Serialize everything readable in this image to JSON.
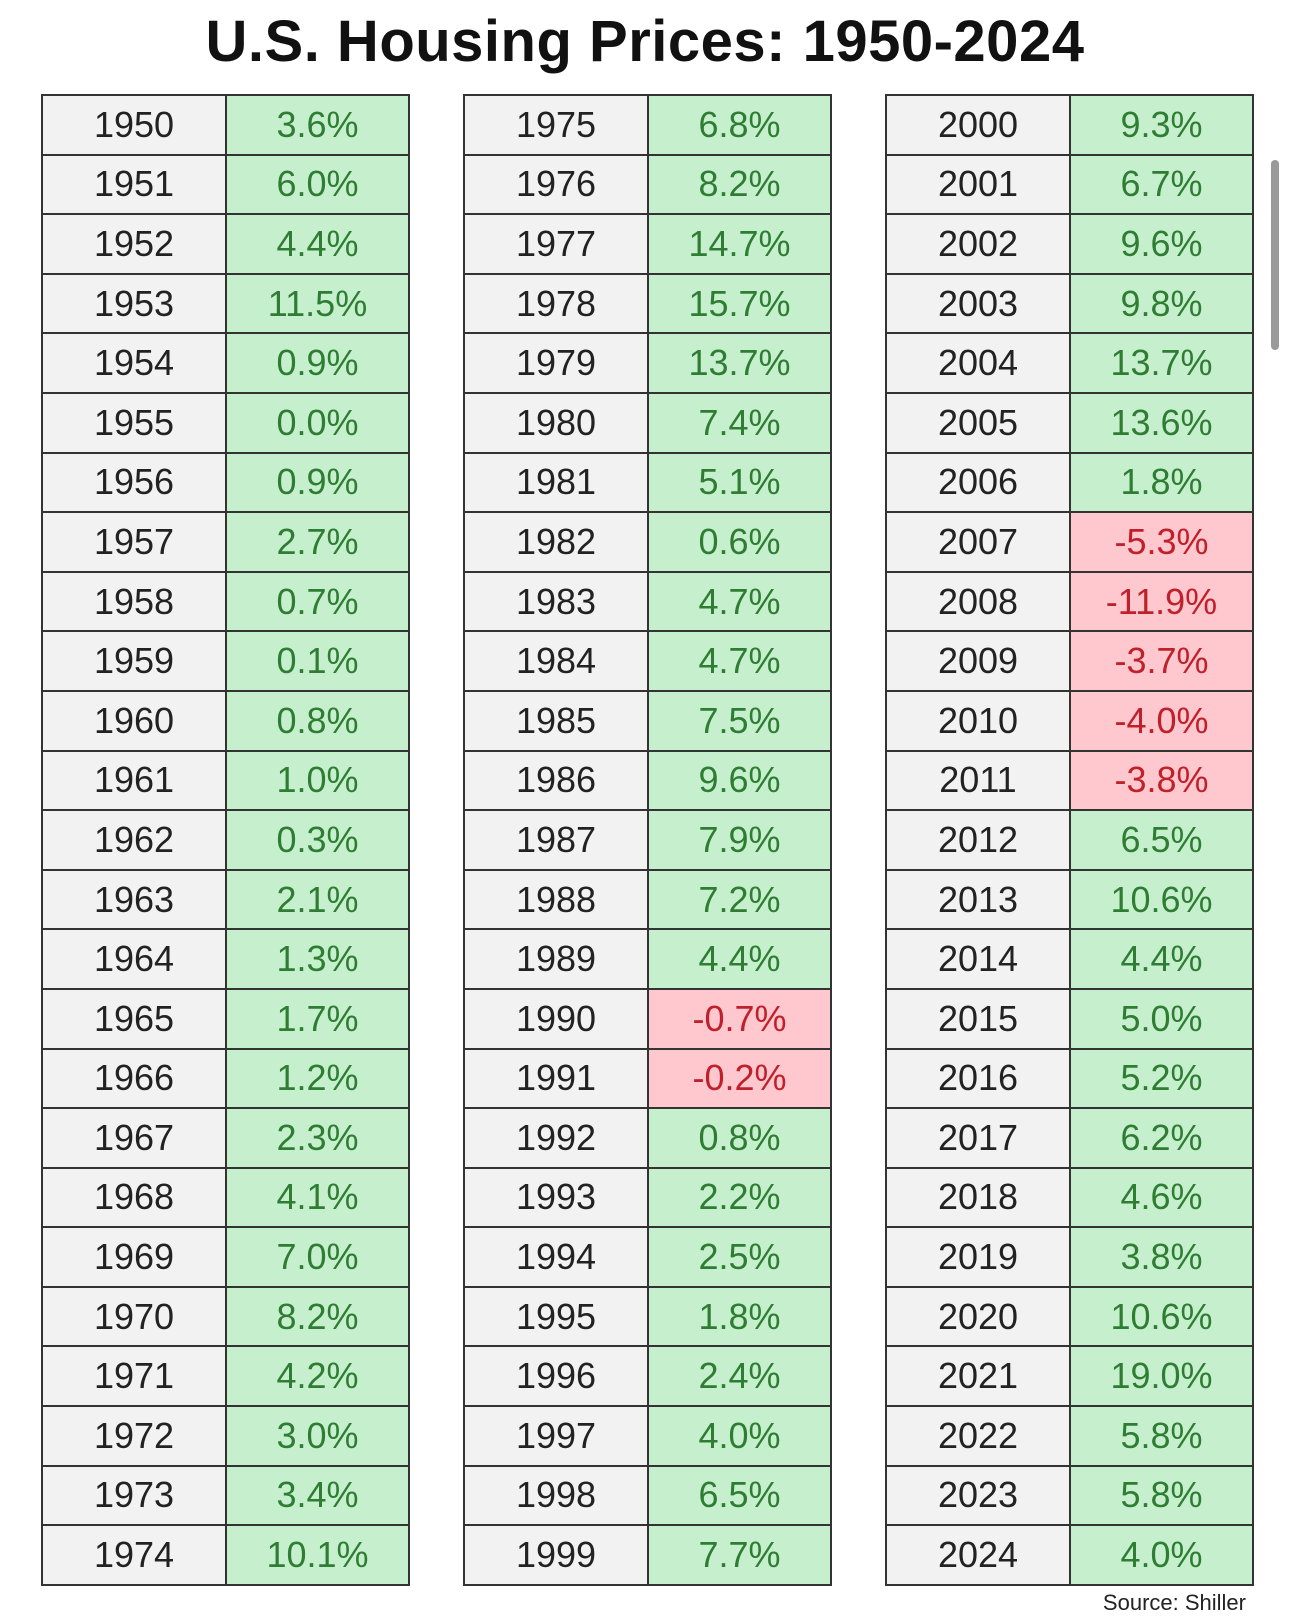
{
  "title": "U.S. Housing Prices: 1950-2024",
  "source": "Source: Shiller",
  "colors": {
    "positive_bg": "#c6efce",
    "positive_text": "#2e7d32",
    "negative_bg": "#ffc7ce",
    "negative_text": "#c0202a",
    "year_bg": "#f2f2f2"
  },
  "chart_data": {
    "type": "table",
    "title": "U.S. Housing Prices: 1950-2024",
    "columns": [
      {
        "rows": [
          {
            "year": "1950",
            "value": "3.6%"
          },
          {
            "year": "1951",
            "value": "6.0%"
          },
          {
            "year": "1952",
            "value": "4.4%"
          },
          {
            "year": "1953",
            "value": "11.5%"
          },
          {
            "year": "1954",
            "value": "0.9%"
          },
          {
            "year": "1955",
            "value": "0.0%"
          },
          {
            "year": "1956",
            "value": "0.9%"
          },
          {
            "year": "1957",
            "value": "2.7%"
          },
          {
            "year": "1958",
            "value": "0.7%"
          },
          {
            "year": "1959",
            "value": "0.1%"
          },
          {
            "year": "1960",
            "value": "0.8%"
          },
          {
            "year": "1961",
            "value": "1.0%"
          },
          {
            "year": "1962",
            "value": "0.3%"
          },
          {
            "year": "1963",
            "value": "2.1%"
          },
          {
            "year": "1964",
            "value": "1.3%"
          },
          {
            "year": "1965",
            "value": "1.7%"
          },
          {
            "year": "1966",
            "value": "1.2%"
          },
          {
            "year": "1967",
            "value": "2.3%"
          },
          {
            "year": "1968",
            "value": "4.1%"
          },
          {
            "year": "1969",
            "value": "7.0%"
          },
          {
            "year": "1970",
            "value": "8.2%"
          },
          {
            "year": "1971",
            "value": "4.2%"
          },
          {
            "year": "1972",
            "value": "3.0%"
          },
          {
            "year": "1973",
            "value": "3.4%"
          },
          {
            "year": "1974",
            "value": "10.1%"
          }
        ]
      },
      {
        "rows": [
          {
            "year": "1975",
            "value": "6.8%"
          },
          {
            "year": "1976",
            "value": "8.2%"
          },
          {
            "year": "1977",
            "value": "14.7%"
          },
          {
            "year": "1978",
            "value": "15.7%"
          },
          {
            "year": "1979",
            "value": "13.7%"
          },
          {
            "year": "1980",
            "value": "7.4%"
          },
          {
            "year": "1981",
            "value": "5.1%"
          },
          {
            "year": "1982",
            "value": "0.6%"
          },
          {
            "year": "1983",
            "value": "4.7%"
          },
          {
            "year": "1984",
            "value": "4.7%"
          },
          {
            "year": "1985",
            "value": "7.5%"
          },
          {
            "year": "1986",
            "value": "9.6%"
          },
          {
            "year": "1987",
            "value": "7.9%"
          },
          {
            "year": "1988",
            "value": "7.2%"
          },
          {
            "year": "1989",
            "value": "4.4%"
          },
          {
            "year": "1990",
            "value": "-0.7%"
          },
          {
            "year": "1991",
            "value": "-0.2%"
          },
          {
            "year": "1992",
            "value": "0.8%"
          },
          {
            "year": "1993",
            "value": "2.2%"
          },
          {
            "year": "1994",
            "value": "2.5%"
          },
          {
            "year": "1995",
            "value": "1.8%"
          },
          {
            "year": "1996",
            "value": "2.4%"
          },
          {
            "year": "1997",
            "value": "4.0%"
          },
          {
            "year": "1998",
            "value": "6.5%"
          },
          {
            "year": "1999",
            "value": "7.7%"
          }
        ]
      },
      {
        "rows": [
          {
            "year": "2000",
            "value": "9.3%"
          },
          {
            "year": "2001",
            "value": "6.7%"
          },
          {
            "year": "2002",
            "value": "9.6%"
          },
          {
            "year": "2003",
            "value": "9.8%"
          },
          {
            "year": "2004",
            "value": "13.7%"
          },
          {
            "year": "2005",
            "value": "13.6%"
          },
          {
            "year": "2006",
            "value": "1.8%"
          },
          {
            "year": "2007",
            "value": "-5.3%"
          },
          {
            "year": "2008",
            "value": "-11.9%"
          },
          {
            "year": "2009",
            "value": "-3.7%"
          },
          {
            "year": "2010",
            "value": "-4.0%"
          },
          {
            "year": "2011",
            "value": "-3.8%"
          },
          {
            "year": "2012",
            "value": "6.5%"
          },
          {
            "year": "2013",
            "value": "10.6%"
          },
          {
            "year": "2014",
            "value": "4.4%"
          },
          {
            "year": "2015",
            "value": "5.0%"
          },
          {
            "year": "2016",
            "value": "5.2%"
          },
          {
            "year": "2017",
            "value": "6.2%"
          },
          {
            "year": "2018",
            "value": "4.6%"
          },
          {
            "year": "2019",
            "value": "3.8%"
          },
          {
            "year": "2020",
            "value": "10.6%"
          },
          {
            "year": "2021",
            "value": "19.0%"
          },
          {
            "year": "2022",
            "value": "5.8%"
          },
          {
            "year": "2023",
            "value": "5.8%"
          },
          {
            "year": "2024",
            "value": "4.0%"
          }
        ]
      }
    ]
  }
}
